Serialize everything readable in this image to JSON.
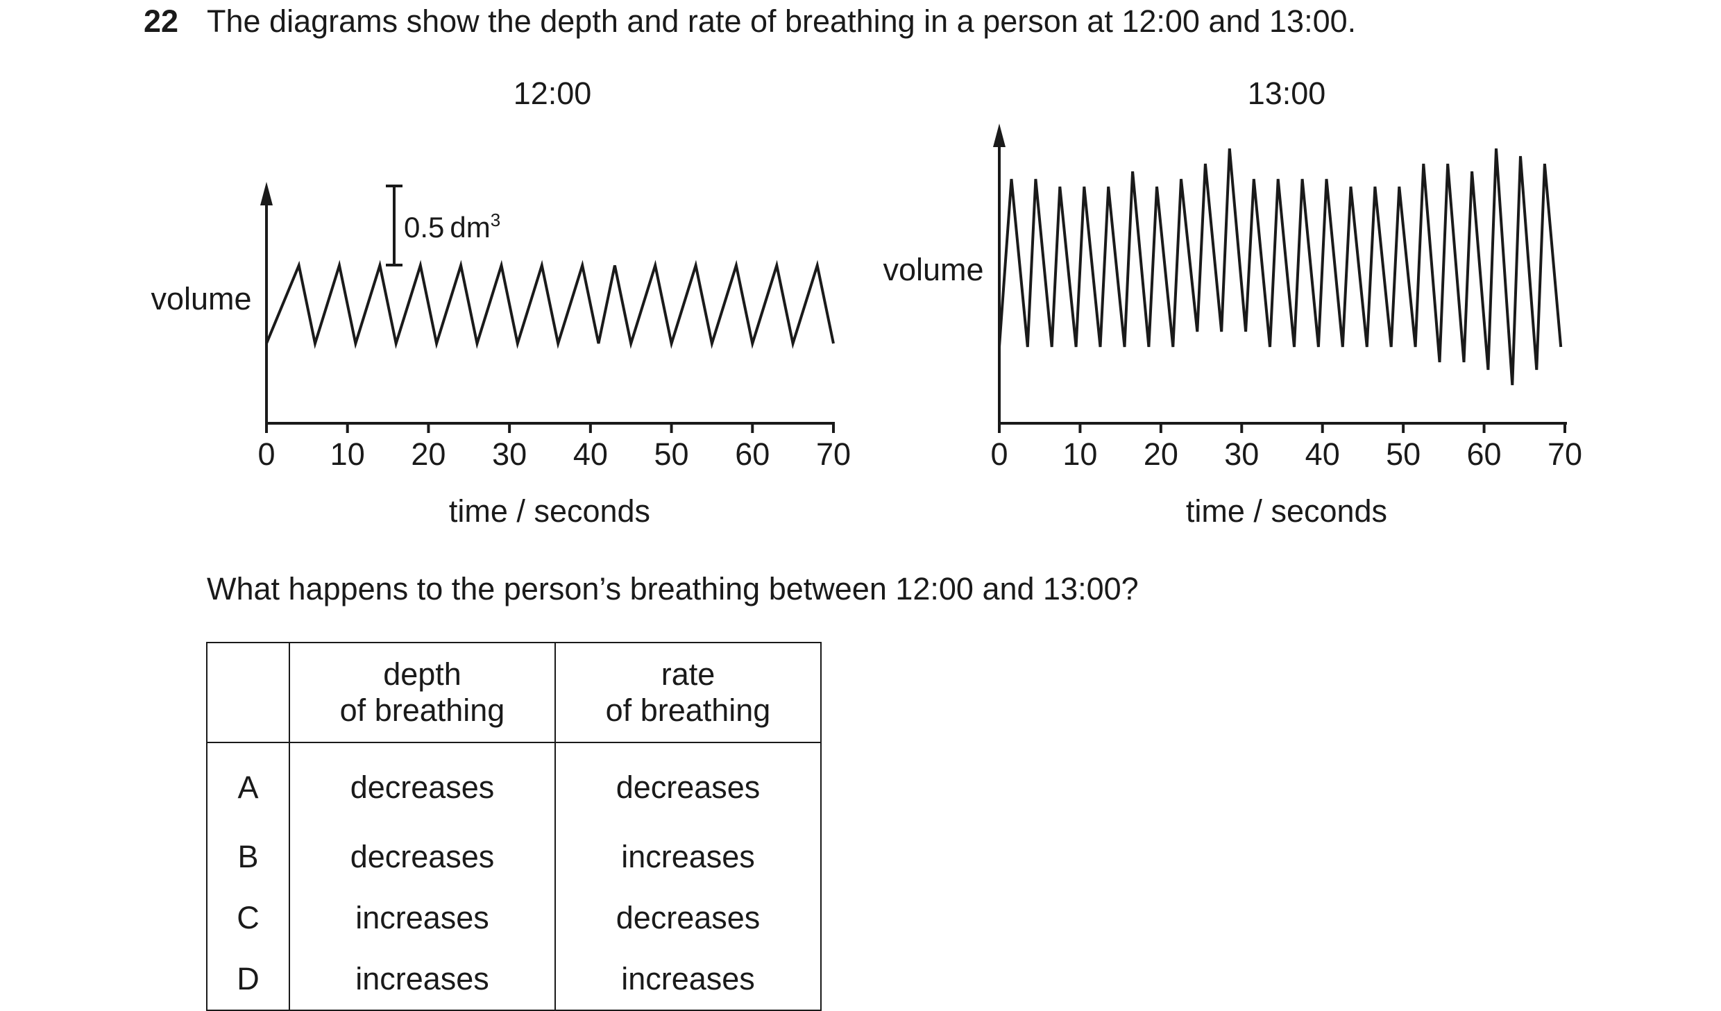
{
  "question": {
    "number": "22",
    "text": "The diagrams show the depth and rate of breathing in a person at 12:00 and 13:00.",
    "prompt": "What happens to the person’s breathing between 12:00 and 13:00?"
  },
  "diagrams": [
    {
      "title": "12:00",
      "ylabel": "volume",
      "xlabel": "time / seconds",
      "scale_bar_value": "0.5",
      "scale_bar_unit": "dm",
      "scale_bar_exp": "3",
      "xticks": [
        "0",
        "10",
        "20",
        "30",
        "40",
        "50",
        "60",
        "70"
      ]
    },
    {
      "title": "13:00",
      "ylabel": "volume",
      "xlabel": "time / seconds",
      "xticks": [
        "0",
        "10",
        "20",
        "30",
        "40",
        "50",
        "60",
        "70"
      ]
    }
  ],
  "chart_data": [
    {
      "type": "line",
      "title": "12:00",
      "xlabel": "time / seconds",
      "ylabel": "volume",
      "xlim": [
        0,
        70
      ],
      "x": [
        0,
        4,
        6,
        9,
        11,
        14,
        16,
        19,
        21,
        24,
        26,
        29,
        31,
        34,
        36,
        39,
        41,
        43,
        45,
        48,
        50,
        53,
        55,
        58,
        60,
        63,
        65,
        68,
        70
      ],
      "y": [
        0.0,
        0.45,
        0.0,
        0.45,
        0.0,
        0.45,
        0.0,
        0.45,
        0.0,
        0.45,
        0.0,
        0.45,
        0.0,
        0.45,
        0.0,
        0.45,
        0.0,
        0.45,
        0.0,
        0.45,
        0.0,
        0.45,
        0.0,
        0.45,
        0.0,
        0.45,
        0.0,
        0.45,
        0.0
      ]
    },
    {
      "type": "line",
      "title": "13:00",
      "xlabel": "time / seconds",
      "ylabel": "volume",
      "xlim": [
        0,
        70
      ],
      "x": [
        0,
        1.5,
        3.5,
        4.5,
        6.5,
        7.5,
        9.5,
        10.5,
        12.5,
        13.5,
        15.5,
        16.5,
        18.5,
        19.5,
        21.5,
        22.5,
        24.5,
        25.5,
        27.5,
        28.5,
        30.5,
        31.5,
        33.5,
        34.5,
        36.5,
        37.5,
        39.5,
        40.5,
        42.5,
        43.5,
        45.5,
        46.5,
        48.5,
        49.5,
        51.5,
        52.5,
        54.5,
        55.5,
        57.5,
        58.5,
        60.5,
        61.5,
        63.5,
        64.5,
        66.5,
        67.5,
        69.5
      ],
      "y": [
        0.0,
        1.1,
        0.0,
        1.1,
        0.0,
        1.05,
        0.0,
        1.05,
        0.0,
        1.05,
        0.0,
        1.15,
        0.0,
        1.05,
        0.0,
        1.1,
        0.1,
        1.2,
        0.1,
        1.3,
        0.1,
        1.1,
        0.0,
        1.1,
        0.0,
        1.1,
        0.0,
        1.1,
        0.0,
        1.05,
        0.0,
        1.05,
        0.0,
        1.05,
        0.0,
        1.2,
        -0.1,
        1.2,
        -0.1,
        1.15,
        -0.15,
        1.3,
        -0.25,
        1.25,
        -0.15,
        1.2,
        0.0
      ]
    }
  ],
  "table": {
    "headers": [
      {
        "line1": "",
        "line2": ""
      },
      {
        "line1": "depth",
        "line2": "of breathing"
      },
      {
        "line1": "rate",
        "line2": "of breathing"
      }
    ],
    "rows": [
      {
        "letter": "A",
        "depth": "decreases",
        "rate": "decreases"
      },
      {
        "letter": "B",
        "depth": "decreases",
        "rate": "increases"
      },
      {
        "letter": "C",
        "depth": "increases",
        "rate": "decreases"
      },
      {
        "letter": "D",
        "depth": "increases",
        "rate": "increases"
      }
    ]
  }
}
